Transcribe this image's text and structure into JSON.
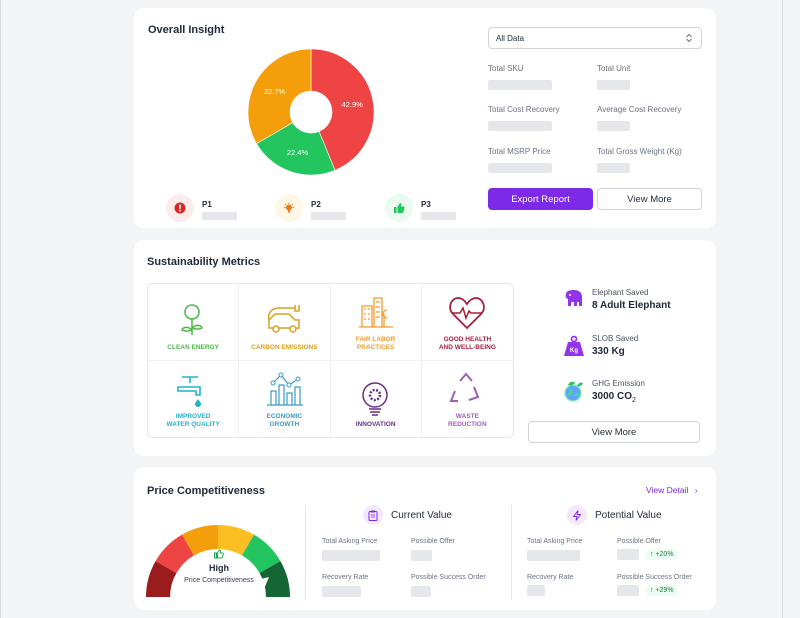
{
  "overall": {
    "title": "Overall Insight",
    "select_value": "All Data",
    "stats": [
      {
        "label": "Total SKU"
      },
      {
        "label": "Total Unit"
      },
      {
        "label": "Total Cost Recovery"
      },
      {
        "label": "Average Cost Recovery"
      },
      {
        "label": "Total MSRP Price"
      },
      {
        "label": "Total Gross Weight (Kg)"
      }
    ],
    "export_label": "Export Report",
    "view_more_label": "View More",
    "donut": [
      {
        "label": "42.9%",
        "value": 42.9,
        "color": "#ef4444"
      },
      {
        "label": "22.4%",
        "value": 22.4,
        "color": "#22c55e"
      },
      {
        "label": "32.7%",
        "value": 32.7,
        "color": "#f59e0b"
      }
    ],
    "priorities": [
      {
        "name": "P1",
        "icon": "alert-icon",
        "color": "#dc2626",
        "bg": "#fdecec"
      },
      {
        "name": "P2",
        "icon": "lightbulb-icon",
        "color": "#ea7a0c",
        "bg": "#fef7e6"
      },
      {
        "name": "P3",
        "icon": "thumbs-up-icon",
        "color": "#22c55e",
        "bg": "#eafaf0"
      }
    ]
  },
  "sustainability": {
    "title": "Sustainability Metrics",
    "goals": [
      {
        "label": "CLEAN ENERGY",
        "color": "#4cb648"
      },
      {
        "label": "CARBON EMISSIONS",
        "color": "#d9a021"
      },
      {
        "label": "FAIR LABOR\nPRACTICES",
        "color": "#f39a2d"
      },
      {
        "label": "GOOD HEALTH\nAND WELL-BEING",
        "color": "#a51f3b"
      },
      {
        "label": "IMPROVED\nWATER QUALITY",
        "color": "#22b3cc"
      },
      {
        "label": "ECONOMIC\nGROWTH",
        "color": "#3a9bbd"
      },
      {
        "label": "INNOVATION",
        "color": "#6b2d7f"
      },
      {
        "label": "WASTE\nREDUCTION",
        "color": "#9b5fb5"
      }
    ],
    "elephant": {
      "label": "Elephant Saved",
      "value": "8 Adult Elephant"
    },
    "slob": {
      "label": "SLOB Saved",
      "value": "330 Kg",
      "icon_text": "Kg"
    },
    "ghg": {
      "label": "GHG Emission",
      "value": "3000 CO",
      "sub": "2"
    },
    "view_more_label": "View More"
  },
  "price": {
    "title": "Price Competitiveness",
    "view_detail": "View Detail",
    "gauge_level": "High",
    "gauge_caption": "Price Competitiveness",
    "gauge_colors": [
      "#9b1c1c",
      "#ef4444",
      "#f59e0b",
      "#fbbf24",
      "#22c55e",
      "#166534"
    ],
    "current": {
      "title": "Current Value",
      "fields": [
        "Total Asking Price",
        "Possible Offer",
        "Recovery Rate",
        "Possible Success Order"
      ]
    },
    "potential": {
      "title": "Potential Value",
      "fields": [
        "Total Asking Price",
        "Possible Offer",
        "Recovery Rate",
        "Possible Success Order"
      ],
      "offer_change": "+20%",
      "success_change": "+29%"
    }
  },
  "accent": "#7c2ae8"
}
